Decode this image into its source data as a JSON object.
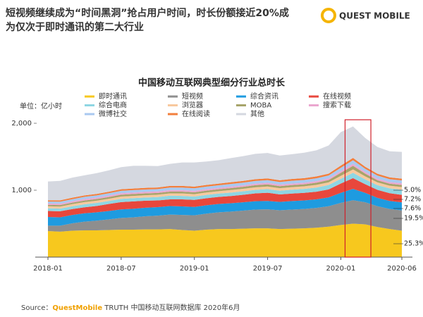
{
  "header": {
    "title_line1": "短视频继续成为“时间黑洞”抢占用户时间，时长份额接近20%成",
    "title_line2": "为仅次于即时通讯的第二大行业",
    "logo": "QUEST MOBILE"
  },
  "chart_data": {
    "type": "stacked_area",
    "title": "中国移动互联网典型细分行业总时长",
    "unit": "单位：亿小时",
    "categories": [
      "2018-01",
      null,
      null,
      null,
      null,
      null,
      "2018-07",
      null,
      null,
      null,
      null,
      null,
      "2019-01",
      null,
      null,
      null,
      null,
      null,
      "2019-07",
      null,
      null,
      null,
      null,
      null,
      "2020-01",
      null,
      null,
      null,
      null,
      "2020-06"
    ],
    "ylim": [
      0,
      2000
    ],
    "yticks": [
      {
        "value": 1000,
        "label": "1,000"
      },
      {
        "value": 2000,
        "label": "2,000"
      }
    ],
    "series": [
      {
        "name": "即时通讯",
        "color": "#f7c81e",
        "values": [
          390,
          380,
          395,
          400,
          400,
          405,
          410,
          410,
          415,
          415,
          420,
          405,
          395,
          410,
          420,
          420,
          425,
          430,
          430,
          420,
          425,
          430,
          440,
          455,
          480,
          500,
          490,
          450,
          420,
          395
        ]
      },
      {
        "name": "短视频",
        "color": "#8e8e8e",
        "values": [
          80,
          90,
          110,
          130,
          145,
          160,
          175,
          185,
          195,
          205,
          215,
          225,
          230,
          240,
          250,
          260,
          270,
          280,
          285,
          280,
          285,
          290,
          295,
          305,
          330,
          350,
          330,
          310,
          300,
          304
        ]
      },
      {
        "name": "综合资讯",
        "color": "#1e9be0",
        "values": [
          130,
          125,
          125,
          125,
          125,
          125,
          128,
          128,
          128,
          128,
          128,
          128,
          125,
          125,
          125,
          125,
          125,
          125,
          125,
          125,
          128,
          128,
          128,
          132,
          150,
          170,
          140,
          125,
          120,
          119
        ]
      },
      {
        "name": "在线视频",
        "color": "#e8473c",
        "values": [
          90,
          90,
          88,
          90,
          95,
          105,
          110,
          110,
          105,
          100,
          100,
          105,
          105,
          105,
          105,
          108,
          112,
          118,
          122,
          112,
          112,
          112,
          115,
          120,
          140,
          160,
          130,
          120,
          115,
          112
        ]
      },
      {
        "name": "综合电商",
        "color": "#8fd6e3",
        "values": [
          40,
          40,
          42,
          45,
          45,
          45,
          48,
          48,
          48,
          50,
          55,
          52,
          50,
          50,
          50,
          52,
          52,
          52,
          55,
          55,
          58,
          60,
          62,
          65,
          70,
          80,
          72,
          70,
          72,
          78
        ]
      },
      {
        "name": "浏览器",
        "color": "#f8c99e",
        "values": [
          30,
          30,
          32,
          32,
          33,
          33,
          34,
          34,
          34,
          35,
          35,
          36,
          36,
          36,
          36,
          37,
          37,
          38,
          38,
          38,
          38,
          38,
          40,
          40,
          45,
          50,
          45,
          42,
          40,
          40
        ]
      },
      {
        "name": "MOBA",
        "color": "#a7a46a",
        "values": [
          20,
          22,
          22,
          24,
          25,
          26,
          28,
          28,
          28,
          26,
          26,
          28,
          28,
          28,
          28,
          30,
          30,
          32,
          32,
          30,
          30,
          30,
          32,
          35,
          45,
          55,
          40,
          32,
          30,
          30
        ]
      },
      {
        "name": "搜索下载",
        "color": "#eba7cf",
        "values": [
          20,
          20,
          20,
          21,
          21,
          21,
          22,
          22,
          22,
          22,
          22,
          22,
          22,
          22,
          22,
          22,
          22,
          23,
          23,
          23,
          23,
          23,
          24,
          24,
          26,
          28,
          25,
          24,
          24,
          24
        ]
      },
      {
        "name": "微博社交",
        "color": "#a9c9f0",
        "values": [
          30,
          32,
          32,
          34,
          34,
          35,
          36,
          36,
          36,
          36,
          38,
          38,
          38,
          38,
          38,
          40,
          40,
          40,
          40,
          40,
          42,
          42,
          42,
          44,
          50,
          55,
          48,
          45,
          44,
          44
        ]
      },
      {
        "name": "在线阅读",
        "color": "#f27f3d",
        "values": [
          20,
          20,
          22,
          22,
          22,
          23,
          24,
          24,
          24,
          24,
          25,
          25,
          25,
          25,
          25,
          26,
          26,
          26,
          26,
          26,
          27,
          27,
          28,
          28,
          32,
          35,
          30,
          28,
          27,
          27
        ]
      },
      {
        "name": "其他",
        "color": "#d5d8e0",
        "values": [
          280,
          290,
          300,
          300,
          310,
          320,
          330,
          340,
          330,
          320,
          330,
          350,
          360,
          350,
          350,
          360,
          370,
          380,
          380,
          370,
          370,
          380,
          390,
          420,
          500,
          470,
          430,
          400,
          390,
          400
        ]
      }
    ],
    "annotations": [
      "5.0%",
      "7.2%",
      "7.6%",
      "19.5%",
      "25.3%"
    ]
  },
  "source": {
    "prefix": "Source：",
    "brand": "QuestMobile",
    "rest": " TRUTH 中国移动互联网数据库 2020年6月"
  }
}
